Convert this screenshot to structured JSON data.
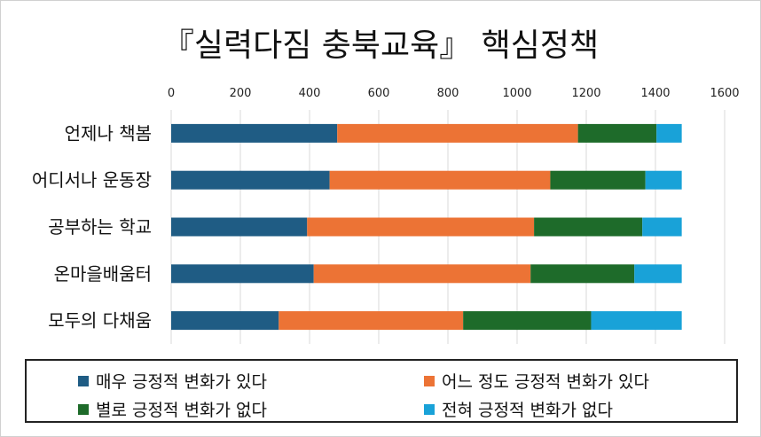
{
  "chart_data": {
    "type": "bar",
    "orientation": "horizontal",
    "stacked": true,
    "title": "『실력다짐 충북교육』 핵심정책",
    "categories": [
      "언제나 책봄",
      "어디서나 운동장",
      "공부하는 학교",
      "온마을배움터",
      "모두의 다채움"
    ],
    "x_ticks": [
      0,
      200,
      400,
      600,
      800,
      1000,
      1200,
      1400,
      1600
    ],
    "xlim": [
      0,
      1600
    ],
    "grid": true,
    "legend_position": "bottom",
    "series": [
      {
        "name": "매우 긍정적 변화가 있다",
        "color": "#1f5c84",
        "values": [
          480,
          458,
          393,
          412,
          311
        ]
      },
      {
        "name": "어느 정도 긍정적 변화가 있다",
        "color": "#ec7335",
        "values": [
          696,
          638,
          656,
          627,
          533
        ]
      },
      {
        "name": "별로 긍정적 변화가 없다",
        "color": "#1e6b2a",
        "values": [
          227,
          275,
          313,
          300,
          370
        ]
      },
      {
        "name": "전혀 긍정적 변화가 없다",
        "color": "#19a2d8",
        "values": [
          73,
          105,
          114,
          137,
          262
        ]
      }
    ]
  }
}
